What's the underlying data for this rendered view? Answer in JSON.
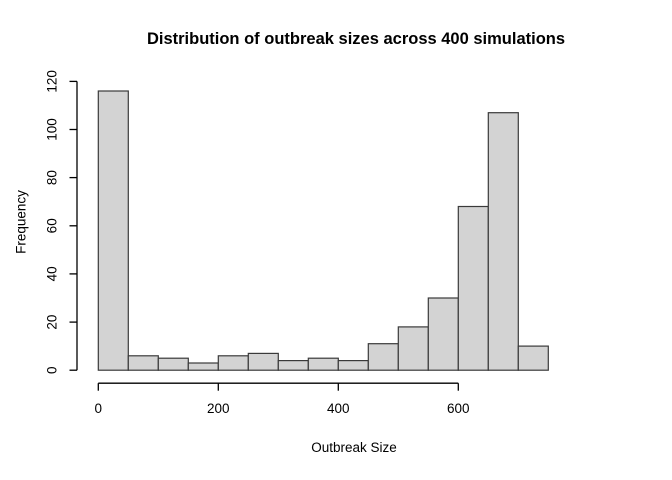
{
  "chart_data": {
    "type": "bar",
    "subtype": "histogram",
    "title": "Distribution of outbreak sizes across 400 simulations",
    "xlabel": "Outbreak Size",
    "ylabel": "Frequency",
    "bin_width": 50,
    "bin_edges": [
      0,
      50,
      100,
      150,
      200,
      250,
      300,
      350,
      400,
      450,
      500,
      550,
      600,
      650,
      700,
      750
    ],
    "frequencies": [
      116,
      6,
      5,
      3,
      6,
      7,
      4,
      5,
      4,
      11,
      18,
      30,
      68,
      107,
      10
    ],
    "total_simulations": 400,
    "x_ticks": [
      0,
      200,
      400,
      600
    ],
    "y_ticks": [
      0,
      20,
      40,
      60,
      80,
      100,
      120
    ],
    "xlim": [
      0,
      750
    ],
    "ylim": [
      0,
      120
    ],
    "grid": false,
    "legend": null,
    "bar_fill": "#d3d3d3",
    "bar_border": "#3a3a3a",
    "axis_color": "#000000"
  }
}
